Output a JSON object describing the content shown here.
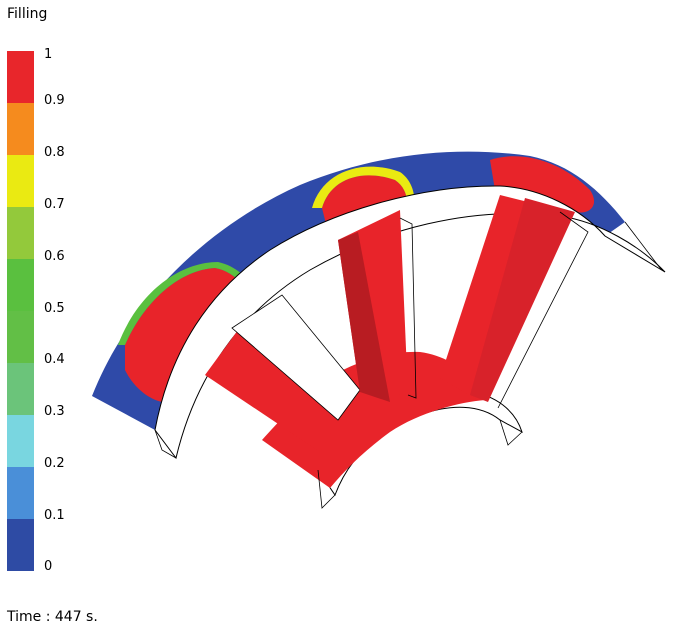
{
  "legend": {
    "title": "Filling",
    "ticks": [
      "1",
      "0.9",
      "0.8",
      "0.7",
      "0.6",
      "0.5",
      "0.4",
      "0.3",
      "0.2",
      "0.1",
      "0"
    ],
    "bands": [
      {
        "color": "#e8262b"
      },
      {
        "color": "#e8262b"
      },
      {
        "color": "#f58b1e"
      },
      {
        "color": "#eaea12"
      },
      {
        "color": "#93c93b"
      },
      {
        "color": "#5ac03f"
      },
      {
        "color": "#62bf46"
      },
      {
        "color": "#6bc47a"
      },
      {
        "color": "#79d6e0"
      },
      {
        "color": "#4a8fd8"
      },
      {
        "color": "#2e4ba4"
      }
    ]
  },
  "status": {
    "time_label": "Time : 447 s."
  },
  "colors": {
    "filled": "#e8242a",
    "filled_dark": "#b81c22",
    "empty": "#2f4aa8",
    "outline": "#000000"
  }
}
